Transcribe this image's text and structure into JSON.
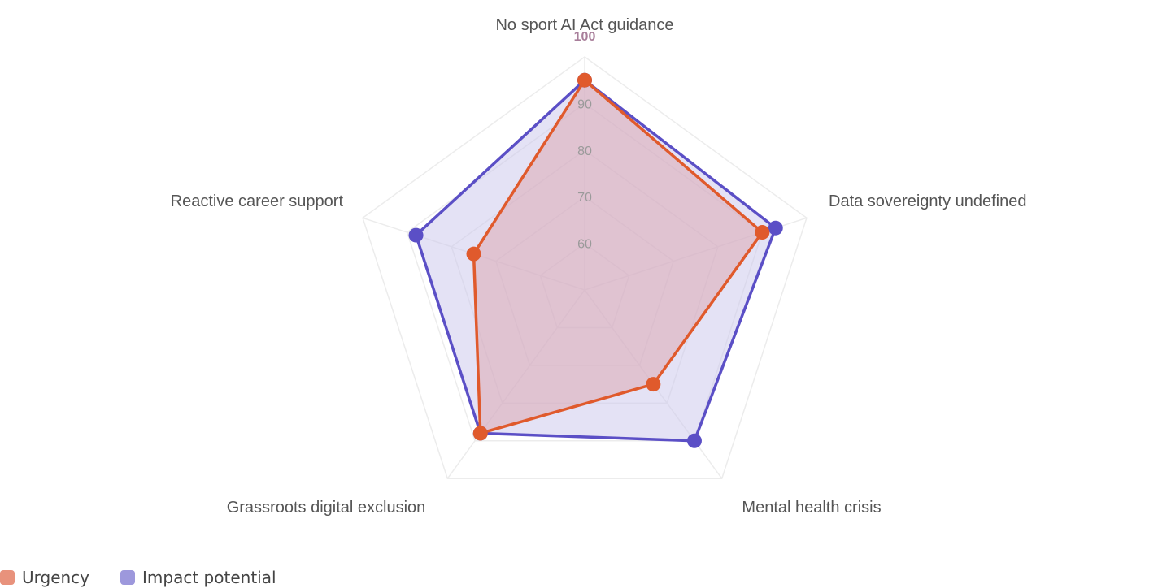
{
  "chart_data": {
    "type": "radar",
    "axes": [
      "No sport AI Act guidance",
      "Data sovereignty undefined",
      "Mental health crisis",
      "Grassroots digital exclusion",
      "Reactive career support"
    ],
    "scale": {
      "min": 50,
      "max": 100,
      "ticks": [
        "60",
        "70",
        "80",
        "90",
        "100"
      ]
    },
    "grid": true,
    "legend_position": "bottom-left",
    "series": [
      {
        "name": "Impact potential",
        "values": [
          95,
          93,
          90,
          88,
          88
        ],
        "line_color": "#5b4fc6",
        "fill_color": "#c9c6ec"
      },
      {
        "name": "Urgency",
        "values": [
          95,
          90,
          75,
          88,
          75
        ],
        "line_color": "#e05a2c",
        "fill_color": "#dca3ad"
      }
    ]
  },
  "legend": {
    "items": [
      {
        "label": "Urgency",
        "color": "#e8927c"
      },
      {
        "label": "Impact potential",
        "color": "#9d98dc"
      }
    ]
  }
}
